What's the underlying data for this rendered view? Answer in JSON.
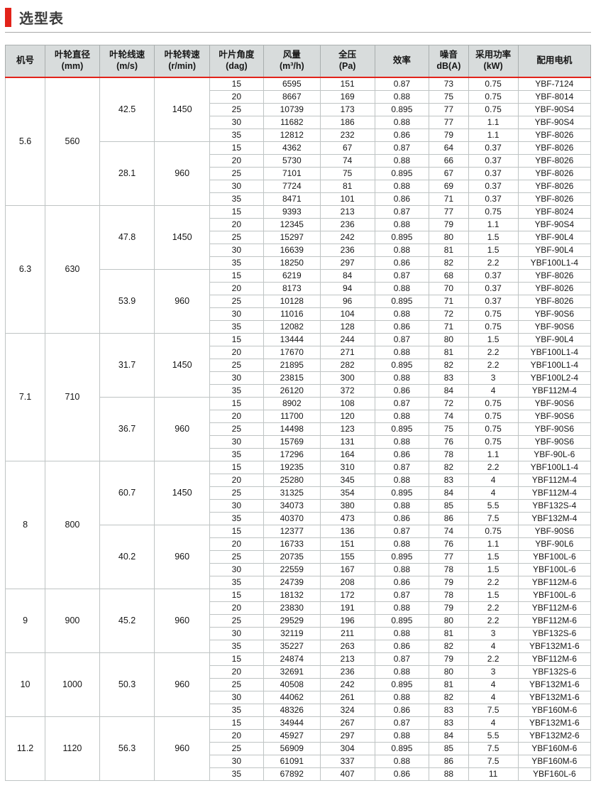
{
  "title": "选型表",
  "colors": {
    "accent_red": "#e2231a",
    "header_bg": "#d8dcdc",
    "grid_line": "#bfc4c4",
    "group_line": "#8d9393"
  },
  "table": {
    "headers": [
      {
        "line1": "机号",
        "line2": ""
      },
      {
        "line1": "叶轮直径",
        "line2": "(mm)"
      },
      {
        "line1": "叶轮线速",
        "line2": "(m/s)"
      },
      {
        "line1": "叶轮转速",
        "line2": "(r/min)"
      },
      {
        "line1": "叶片角度",
        "line2": "(dag)"
      },
      {
        "line1": "风量",
        "line2": "(m³/h)"
      },
      {
        "line1": "全压",
        "line2": "(Pa)"
      },
      {
        "line1": "效率",
        "line2": ""
      },
      {
        "line1": "噪音",
        "line2": "dB(A)"
      },
      {
        "line1": "采用功率",
        "line2": "(kW)"
      },
      {
        "line1": "配用电机",
        "line2": ""
      }
    ],
    "row_columns": [
      "blade-angle",
      "airflow",
      "total-pressure",
      "efficiency",
      "noise",
      "power",
      "motor"
    ],
    "groups": [
      {
        "model": "5.6",
        "diameter": "560",
        "speeds": [
          {
            "line_speed": "42.5",
            "rpm": "1450",
            "rows": [
              [
                "15",
                "6595",
                "151",
                "0.87",
                "73",
                "0.75",
                "YBF-7124"
              ],
              [
                "20",
                "8667",
                "169",
                "0.88",
                "75",
                "0.75",
                "YBF-8014"
              ],
              [
                "25",
                "10739",
                "173",
                "0.895",
                "77",
                "0.75",
                "YBF-90S4"
              ],
              [
                "30",
                "11682",
                "186",
                "0.88",
                "77",
                "1.1",
                "YBF-90S4"
              ],
              [
                "35",
                "12812",
                "232",
                "0.86",
                "79",
                "1.1",
                "YBF-8026"
              ]
            ]
          },
          {
            "line_speed": "28.1",
            "rpm": "960",
            "rows": [
              [
                "15",
                "4362",
                "67",
                "0.87",
                "64",
                "0.37",
                "YBF-8026"
              ],
              [
                "20",
                "5730",
                "74",
                "0.88",
                "66",
                "0.37",
                "YBF-8026"
              ],
              [
                "25",
                "7101",
                "75",
                "0.895",
                "67",
                "0.37",
                "YBF-8026"
              ],
              [
                "30",
                "7724",
                "81",
                "0.88",
                "69",
                "0.37",
                "YBF-8026"
              ],
              [
                "35",
                "8471",
                "101",
                "0.86",
                "71",
                "0.37",
                "YBF-8026"
              ]
            ]
          }
        ]
      },
      {
        "model": "6.3",
        "diameter": "630",
        "speeds": [
          {
            "line_speed": "47.8",
            "rpm": "1450",
            "rows": [
              [
                "15",
                "9393",
                "213",
                "0.87",
                "77",
                "0.75",
                "YBF-8024"
              ],
              [
                "20",
                "12345",
                "236",
                "0.88",
                "79",
                "1.1",
                "YBF-90S4"
              ],
              [
                "25",
                "15297",
                "242",
                "0.895",
                "80",
                "1.5",
                "YBF-90L4"
              ],
              [
                "30",
                "16639",
                "236",
                "0.88",
                "81",
                "1.5",
                "YBF-90L4"
              ],
              [
                "35",
                "18250",
                "297",
                "0.86",
                "82",
                "2.2",
                "YBF100L1-4"
              ]
            ]
          },
          {
            "line_speed": "53.9",
            "rpm": "960",
            "rows": [
              [
                "15",
                "6219",
                "84",
                "0.87",
                "68",
                "0.37",
                "YBF-8026"
              ],
              [
                "20",
                "8173",
                "94",
                "0.88",
                "70",
                "0.37",
                "YBF-8026"
              ],
              [
                "25",
                "10128",
                "96",
                "0.895",
                "71",
                "0.37",
                "YBF-8026"
              ],
              [
                "30",
                "11016",
                "104",
                "0.88",
                "72",
                "0.75",
                "YBF-90S6"
              ],
              [
                "35",
                "12082",
                "128",
                "0.86",
                "71",
                "0.75",
                "YBF-90S6"
              ]
            ]
          }
        ]
      },
      {
        "model": "7.1",
        "diameter": "710",
        "speeds": [
          {
            "line_speed": "31.7",
            "rpm": "1450",
            "rows": [
              [
                "15",
                "13444",
                "244",
                "0.87",
                "80",
                "1.5",
                "YBF-90L4"
              ],
              [
                "20",
                "17670",
                "271",
                "0.88",
                "81",
                "2.2",
                "YBF100L1-4"
              ],
              [
                "25",
                "21895",
                "282",
                "0.895",
                "82",
                "2.2",
                "YBF100L1-4"
              ],
              [
                "30",
                "23815",
                "300",
                "0.88",
                "83",
                "3",
                "YBF100L2-4"
              ],
              [
                "35",
                "26120",
                "372",
                "0.86",
                "84",
                "4",
                "YBF112M-4"
              ]
            ]
          },
          {
            "line_speed": "36.7",
            "rpm": "960",
            "rows": [
              [
                "15",
                "8902",
                "108",
                "0.87",
                "72",
                "0.75",
                "YBF-90S6"
              ],
              [
                "20",
                "11700",
                "120",
                "0.88",
                "74",
                "0.75",
                "YBF-90S6"
              ],
              [
                "25",
                "14498",
                "123",
                "0.895",
                "75",
                "0.75",
                "YBF-90S6"
              ],
              [
                "30",
                "15769",
                "131",
                "0.88",
                "76",
                "0.75",
                "YBF-90S6"
              ],
              [
                "35",
                "17296",
                "164",
                "0.86",
                "78",
                "1.1",
                "YBF-90L-6"
              ]
            ]
          }
        ]
      },
      {
        "model": "8",
        "diameter": "800",
        "speeds": [
          {
            "line_speed": "60.7",
            "rpm": "1450",
            "rows": [
              [
                "15",
                "19235",
                "310",
                "0.87",
                "82",
                "2.2",
                "YBF100L1-4"
              ],
              [
                "20",
                "25280",
                "345",
                "0.88",
                "83",
                "4",
                "YBF112M-4"
              ],
              [
                "25",
                "31325",
                "354",
                "0.895",
                "84",
                "4",
                "YBF112M-4"
              ],
              [
                "30",
                "34073",
                "380",
                "0.88",
                "85",
                "5.5",
                "YBF132S-4"
              ],
              [
                "35",
                "40370",
                "473",
                "0.86",
                "86",
                "7.5",
                "YBF132M-4"
              ]
            ]
          },
          {
            "line_speed": "40.2",
            "rpm": "960",
            "rows": [
              [
                "15",
                "12377",
                "136",
                "0.87",
                "74",
                "0.75",
                "YBF-90S6"
              ],
              [
                "20",
                "16733",
                "151",
                "0.88",
                "76",
                "1.1",
                "YBF-90L6"
              ],
              [
                "25",
                "20735",
                "155",
                "0.895",
                "77",
                "1.5",
                "YBF100L-6"
              ],
              [
                "30",
                "22559",
                "167",
                "0.88",
                "78",
                "1.5",
                "YBF100L-6"
              ],
              [
                "35",
                "24739",
                "208",
                "0.86",
                "79",
                "2.2",
                "YBF112M-6"
              ]
            ]
          }
        ]
      },
      {
        "model": "9",
        "diameter": "900",
        "speeds": [
          {
            "line_speed": "45.2",
            "rpm": "960",
            "rows": [
              [
                "15",
                "18132",
                "172",
                "0.87",
                "78",
                "1.5",
                "YBF100L-6"
              ],
              [
                "20",
                "23830",
                "191",
                "0.88",
                "79",
                "2.2",
                "YBF112M-6"
              ],
              [
                "25",
                "29529",
                "196",
                "0.895",
                "80",
                "2.2",
                "YBF112M-6"
              ],
              [
                "30",
                "32119",
                "211",
                "0.88",
                "81",
                "3",
                "YBF132S-6"
              ],
              [
                "35",
                "35227",
                "263",
                "0.86",
                "82",
                "4",
                "YBF132M1-6"
              ]
            ]
          }
        ]
      },
      {
        "model": "10",
        "diameter": "1000",
        "speeds": [
          {
            "line_speed": "50.3",
            "rpm": "960",
            "rows": [
              [
                "15",
                "24874",
                "213",
                "0.87",
                "79",
                "2.2",
                "YBF112M-6"
              ],
              [
                "20",
                "32691",
                "236",
                "0.88",
                "80",
                "3",
                "YBF132S-6"
              ],
              [
                "25",
                "40508",
                "242",
                "0.895",
                "81",
                "4",
                "YBF132M1-6"
              ],
              [
                "30",
                "44062",
                "261",
                "0.88",
                "82",
                "4",
                "YBF132M1-6"
              ],
              [
                "35",
                "48326",
                "324",
                "0.86",
                "83",
                "7.5",
                "YBF160M-6"
              ]
            ]
          }
        ]
      },
      {
        "model": "11.2",
        "diameter": "1120",
        "speeds": [
          {
            "line_speed": "56.3",
            "rpm": "960",
            "rows": [
              [
                "15",
                "34944",
                "267",
                "0.87",
                "83",
                "4",
                "YBF132M1-6"
              ],
              [
                "20",
                "45927",
                "297",
                "0.88",
                "84",
                "5.5",
                "YBF132M2-6"
              ],
              [
                "25",
                "56909",
                "304",
                "0.895",
                "85",
                "7.5",
                "YBF160M-6"
              ],
              [
                "30",
                "61091",
                "337",
                "0.88",
                "86",
                "7.5",
                "YBF160M-6"
              ],
              [
                "35",
                "67892",
                "407",
                "0.86",
                "88",
                "11",
                "YBF160L-6"
              ]
            ]
          }
        ]
      }
    ]
  }
}
